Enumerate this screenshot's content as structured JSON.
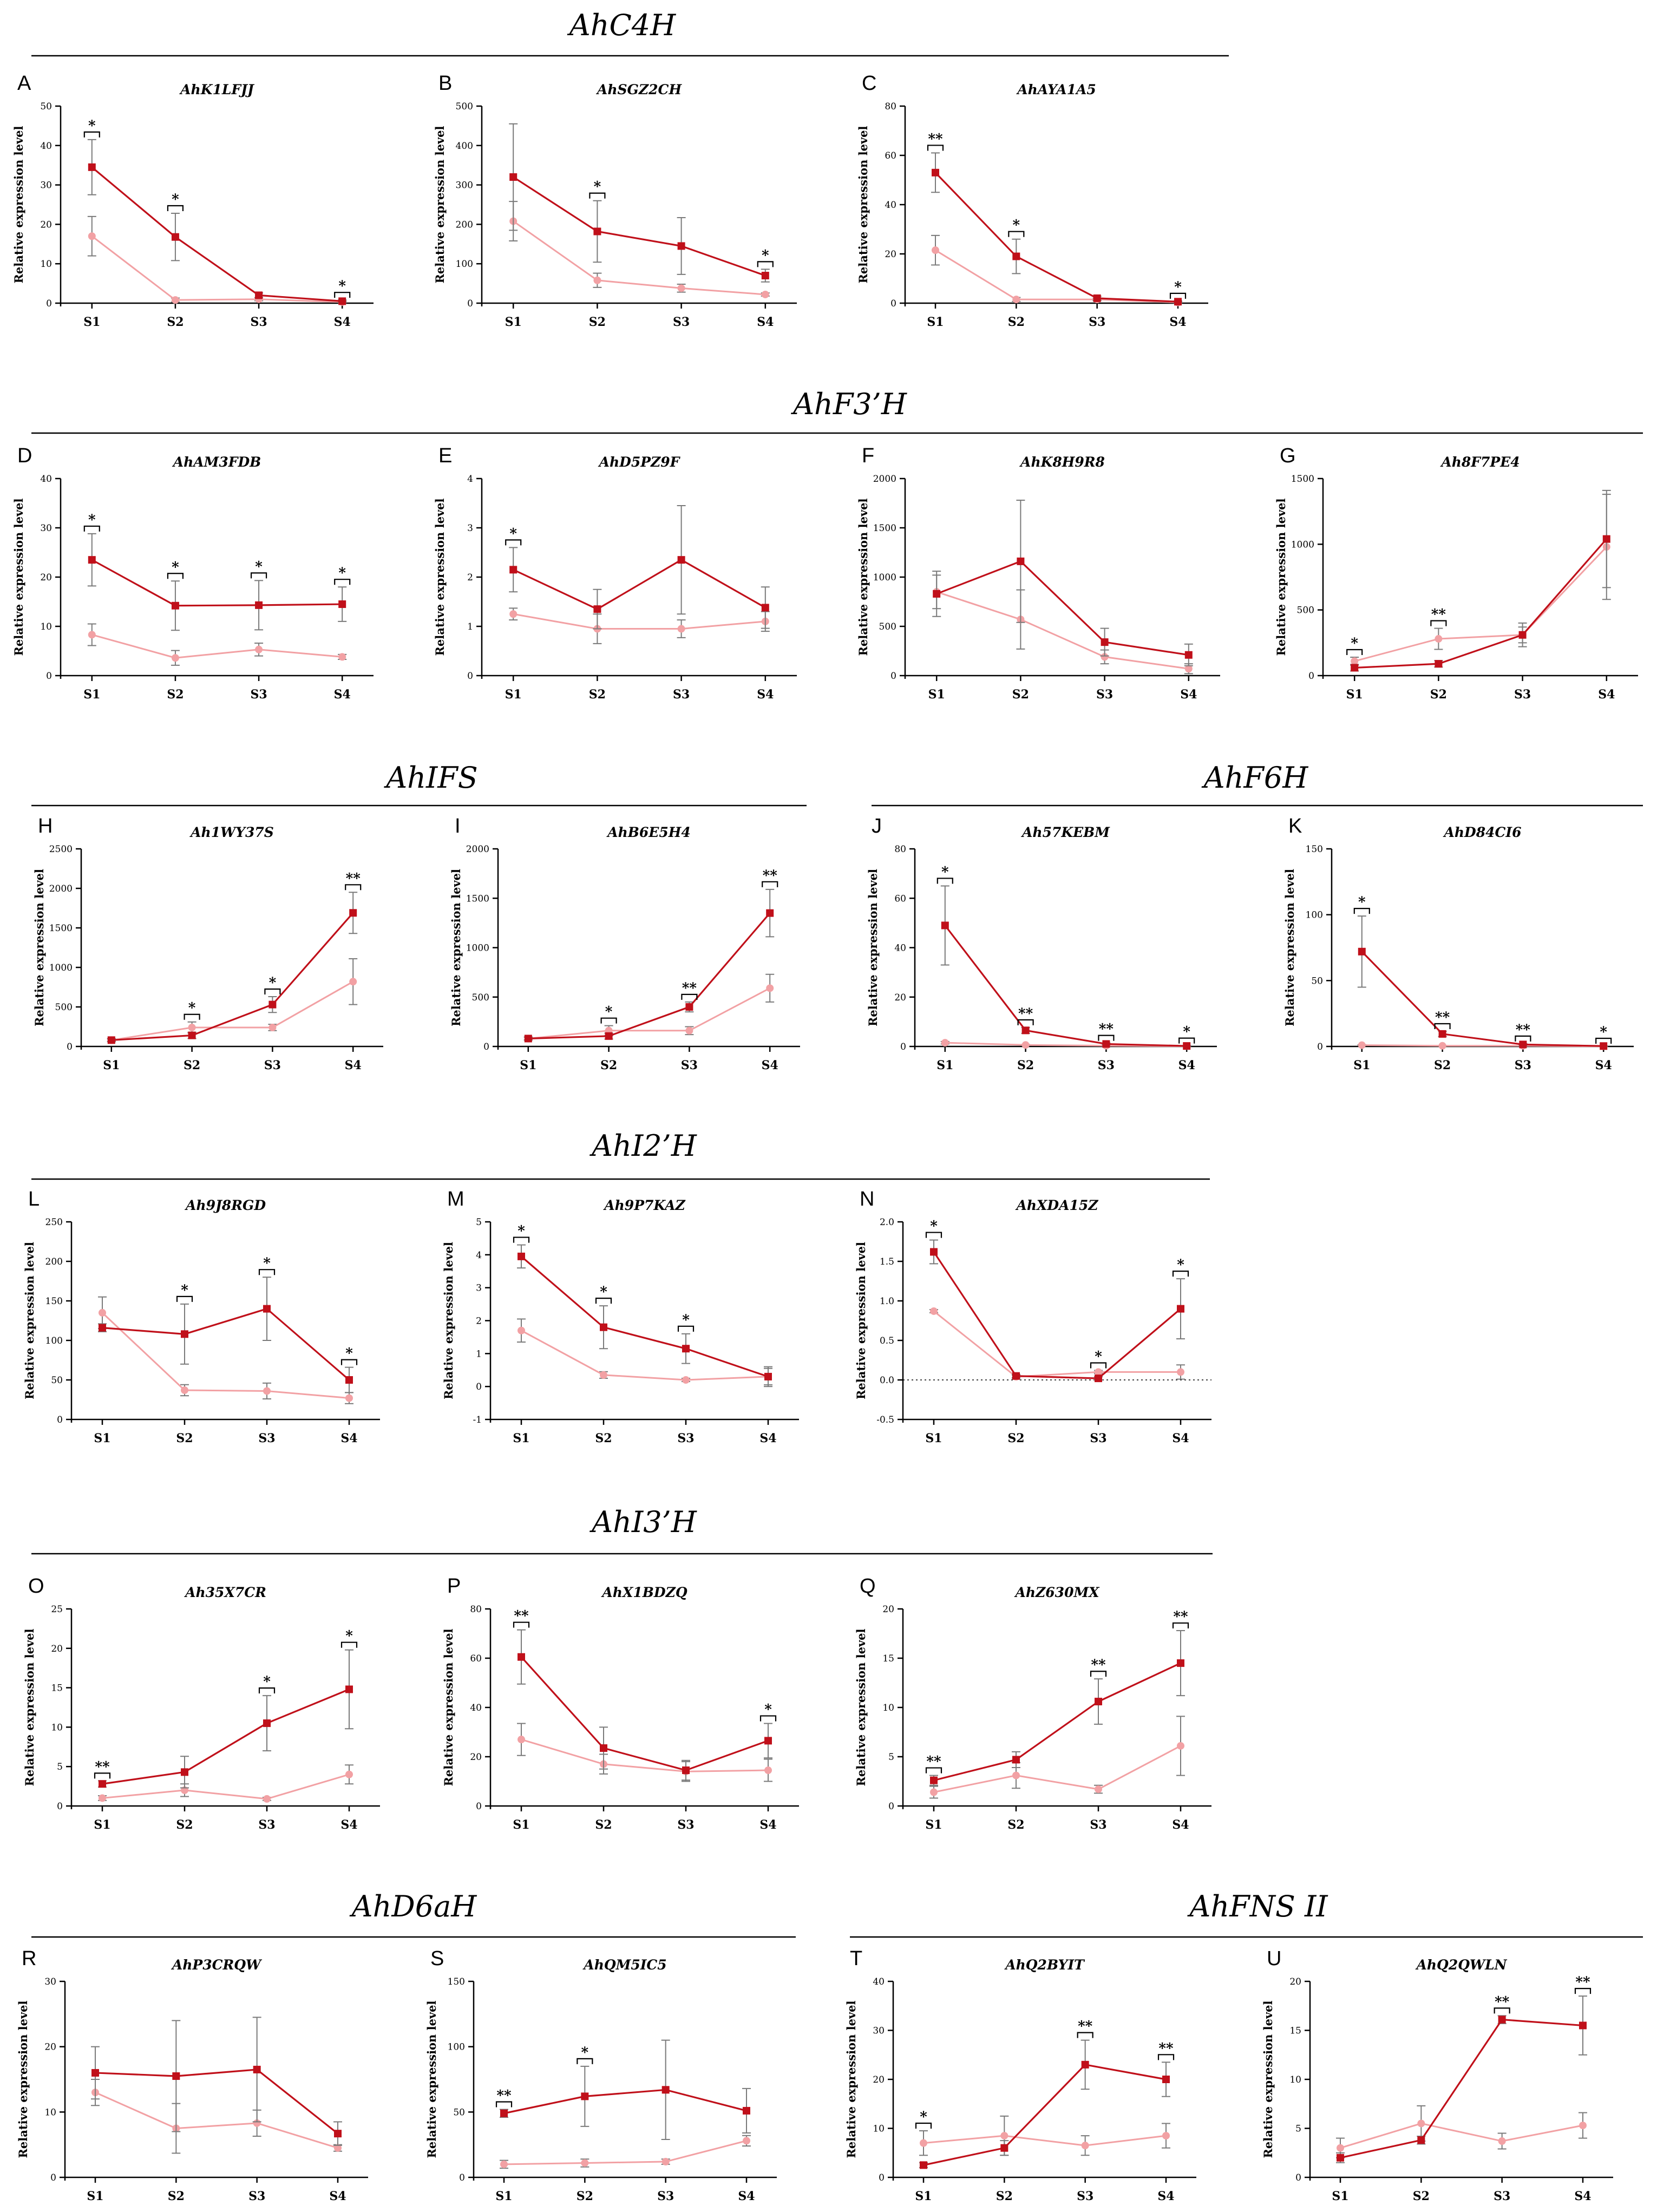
{
  "colors": {
    "treatment": "#c0101a",
    "control": "#f2a1a4"
  },
  "y_axis_label": "Relative expression level",
  "group_titles": [
    {
      "text": "AhC4H"
    },
    {
      "text": "AhF3’H"
    },
    {
      "text": "AhIFS"
    },
    {
      "text": "AhF6H"
    },
    {
      "text": "AhI2’H"
    },
    {
      "text": "AhI3’H"
    },
    {
      "text": "AhD6aH"
    },
    {
      "text": "AhFNS II"
    }
  ],
  "chart_data": [
    {
      "type": "line",
      "panel": "A",
      "title": "AhK1LFJJ",
      "categories": [
        "S1",
        "S2",
        "S3",
        "S4"
      ],
      "ylim": [
        0,
        50
      ],
      "yticks": [
        0,
        10,
        20,
        30,
        40,
        50
      ],
      "series": [
        {
          "name": "dark",
          "values": [
            34.5,
            16.8,
            2.0,
            0.5
          ],
          "errors": [
            7,
            6,
            0.6,
            0.3
          ]
        },
        {
          "name": "light",
          "values": [
            17.0,
            0.8,
            1.0,
            0.3
          ],
          "errors": [
            5,
            0.5,
            0.4,
            0.2
          ]
        }
      ],
      "significance": [
        "*",
        "*",
        "",
        "*"
      ]
    },
    {
      "type": "line",
      "panel": "B",
      "title": "AhSGZ2CH",
      "categories": [
        "S1",
        "S2",
        "S3",
        "S4"
      ],
      "ylim": [
        0,
        500
      ],
      "yticks": [
        0,
        100,
        200,
        300,
        400,
        500
      ],
      "series": [
        {
          "name": "dark",
          "values": [
            320,
            182,
            145,
            70
          ],
          "errors": [
            135,
            78,
            72,
            16
          ]
        },
        {
          "name": "light",
          "values": [
            208,
            58,
            38,
            22
          ],
          "errors": [
            50,
            18,
            10,
            4
          ]
        }
      ],
      "significance": [
        "",
        "*",
        "",
        "*"
      ]
    },
    {
      "type": "line",
      "panel": "C",
      "title": "AhAYA1A5",
      "categories": [
        "S1",
        "S2",
        "S3",
        "S4"
      ],
      "ylim": [
        0,
        80
      ],
      "yticks": [
        0,
        20,
        40,
        60,
        80
      ],
      "series": [
        {
          "name": "dark",
          "values": [
            53,
            19,
            2,
            0.6
          ],
          "errors": [
            8,
            7,
            0.8,
            0.3
          ]
        },
        {
          "name": "light",
          "values": [
            21.5,
            1.5,
            1.5,
            0.3
          ],
          "errors": [
            6,
            0.8,
            0.5,
            0.2
          ]
        }
      ],
      "significance": [
        "**",
        "*",
        "",
        "*"
      ]
    },
    {
      "type": "line",
      "panel": "D",
      "title": "AhAM3FDB",
      "categories": [
        "S1",
        "S2",
        "S3",
        "S4"
      ],
      "ylim": [
        0,
        40
      ],
      "yticks": [
        0,
        10,
        20,
        30,
        40
      ],
      "series": [
        {
          "name": "dark",
          "values": [
            23.5,
            14.2,
            14.3,
            14.5
          ],
          "errors": [
            5.3,
            5,
            5,
            3.5
          ]
        },
        {
          "name": "light",
          "values": [
            8.3,
            3.6,
            5.3,
            3.8
          ],
          "errors": [
            2.2,
            1.5,
            1.3,
            0.5
          ]
        }
      ],
      "significance": [
        "*",
        "*",
        "*",
        "*"
      ]
    },
    {
      "type": "line",
      "panel": "E",
      "title": "AhD5PZ9F",
      "categories": [
        "S1",
        "S2",
        "S3",
        "S4"
      ],
      "ylim": [
        0,
        4
      ],
      "yticks": [
        0,
        1,
        2,
        3,
        4
      ],
      "series": [
        {
          "name": "dark",
          "values": [
            2.15,
            1.35,
            2.35,
            1.38
          ],
          "errors": [
            0.45,
            0.4,
            1.1,
            0.42
          ]
        },
        {
          "name": "light",
          "values": [
            1.25,
            0.95,
            0.95,
            1.1
          ],
          "errors": [
            0.12,
            0.3,
            0.18,
            0.2
          ]
        }
      ],
      "significance": [
        "*",
        "",
        "",
        ""
      ]
    },
    {
      "type": "line",
      "panel": "F",
      "title": "AhK8H9R8",
      "categories": [
        "S1",
        "S2",
        "S3",
        "S4"
      ],
      "ylim": [
        0,
        2000
      ],
      "yticks": [
        0,
        500,
        1000,
        1500,
        2000
      ],
      "series": [
        {
          "name": "dark",
          "values": [
            830,
            1160,
            340,
            210
          ],
          "errors": [
            230,
            620,
            140,
            110
          ]
        },
        {
          "name": "light",
          "values": [
            850,
            570,
            190,
            70
          ],
          "errors": [
            170,
            300,
            70,
            50
          ]
        }
      ],
      "significance": [
        "",
        "",
        "",
        ""
      ]
    },
    {
      "type": "line",
      "panel": "G",
      "title": "Ah8F7PE4",
      "categories": [
        "S1",
        "S2",
        "S3",
        "S4"
      ],
      "ylim": [
        0,
        1500
      ],
      "yticks": [
        0,
        500,
        1000,
        1500
      ],
      "series": [
        {
          "name": "dark",
          "values": [
            60,
            90,
            310,
            1040
          ],
          "errors": [
            25,
            25,
            60,
            370
          ]
        },
        {
          "name": "light",
          "values": [
            110,
            280,
            310,
            980
          ],
          "errors": [
            30,
            80,
            90,
            400
          ]
        }
      ],
      "significance": [
        "*",
        "**",
        "",
        ""
      ]
    },
    {
      "type": "line",
      "panel": "H",
      "title": "Ah1WY37S",
      "categories": [
        "S1",
        "S2",
        "S3",
        "S4"
      ],
      "ylim": [
        0,
        2500
      ],
      "yticks": [
        0,
        500,
        1000,
        1500,
        2000,
        2500
      ],
      "series": [
        {
          "name": "dark",
          "values": [
            80,
            140,
            530,
            1690
          ],
          "errors": [
            20,
            40,
            100,
            260
          ]
        },
        {
          "name": "light",
          "values": [
            80,
            240,
            240,
            820
          ],
          "errors": [
            15,
            70,
            40,
            290
          ]
        }
      ],
      "significance": [
        "",
        "*",
        "*",
        "**"
      ]
    },
    {
      "type": "line",
      "panel": "I",
      "title": "AhB6E5H4",
      "categories": [
        "S1",
        "S2",
        "S3",
        "S4"
      ],
      "ylim": [
        0,
        2000
      ],
      "yticks": [
        0,
        500,
        1000,
        1500,
        2000
      ],
      "series": [
        {
          "name": "dark",
          "values": [
            80,
            105,
            400,
            1350
          ],
          "errors": [
            15,
            30,
            50,
            240
          ]
        },
        {
          "name": "light",
          "values": [
            80,
            160,
            160,
            590
          ],
          "errors": [
            15,
            50,
            40,
            140
          ]
        }
      ],
      "significance": [
        "",
        "*",
        "**",
        "**"
      ]
    },
    {
      "type": "line",
      "panel": "J",
      "title": "Ah57KEBM",
      "categories": [
        "S1",
        "S2",
        "S3",
        "S4"
      ],
      "ylim": [
        0,
        80
      ],
      "yticks": [
        0,
        20,
        40,
        60,
        80
      ],
      "series": [
        {
          "name": "dark",
          "values": [
            49,
            6.5,
            1.0,
            0.2
          ],
          "errors": [
            16,
            1.2,
            0.4,
            0.1
          ]
        },
        {
          "name": "light",
          "values": [
            1.5,
            0.6,
            0.3,
            0.1
          ],
          "errors": [
            0.5,
            0.2,
            0.1,
            0.05
          ]
        }
      ],
      "significance": [
        "*",
        "**",
        "**",
        "*"
      ]
    },
    {
      "type": "line",
      "panel": "K",
      "title": "AhD84CI6",
      "categories": [
        "S1",
        "S2",
        "S3",
        "S4"
      ],
      "ylim": [
        0,
        150
      ],
      "yticks": [
        0,
        50,
        100,
        150
      ],
      "series": [
        {
          "name": "dark",
          "values": [
            72,
            9.5,
            1.5,
            0.3
          ],
          "errors": [
            27,
            2,
            0.6,
            0.1
          ]
        },
        {
          "name": "light",
          "values": [
            1.0,
            0.5,
            0.5,
            0.1
          ],
          "errors": [
            0.3,
            0.2,
            0.1,
            0.05
          ]
        }
      ],
      "significance": [
        "*",
        "**",
        "**",
        "*"
      ]
    },
    {
      "type": "line",
      "panel": "L",
      "title": "Ah9J8RGD",
      "categories": [
        "S1",
        "S2",
        "S3",
        "S4"
      ],
      "ylim": [
        0,
        250
      ],
      "yticks": [
        0,
        50,
        100,
        150,
        200,
        250
      ],
      "series": [
        {
          "name": "dark",
          "values": [
            116,
            108,
            140,
            50
          ],
          "errors": [
            5,
            38,
            40,
            16
          ]
        },
        {
          "name": "light",
          "values": [
            135,
            37,
            36,
            27
          ],
          "errors": [
            20,
            7,
            10,
            7
          ]
        }
      ],
      "significance": [
        "",
        "*",
        "*",
        "*"
      ]
    },
    {
      "type": "line",
      "panel": "M",
      "title": "Ah9P7KAZ",
      "categories": [
        "S1",
        "S2",
        "S3",
        "S4"
      ],
      "ylim": [
        -1,
        5
      ],
      "yticks": [
        -1,
        0,
        1,
        2,
        3,
        4,
        5
      ],
      "series": [
        {
          "name": "dark",
          "values": [
            3.95,
            1.8,
            1.15,
            0.3
          ],
          "errors": [
            0.35,
            0.65,
            0.45,
            0.25
          ]
        },
        {
          "name": "light",
          "values": [
            1.7,
            0.35,
            0.2,
            0.3
          ],
          "errors": [
            0.35,
            0.1,
            0.05,
            0.3
          ]
        }
      ],
      "significance": [
        "*",
        "*",
        "*",
        ""
      ]
    },
    {
      "type": "line",
      "panel": "N",
      "title": "AhXDA15Z",
      "categories": [
        "S1",
        "S2",
        "S3",
        "S4"
      ],
      "ylim": [
        -0.5,
        2.0
      ],
      "yticks": [
        -0.5,
        0.0,
        0.5,
        1.0,
        1.5,
        2.0
      ],
      "yticklabels": [
        "-0.5",
        "0.0",
        "0.5",
        "1.0",
        "1.5",
        "2.0"
      ],
      "zero_line": true,
      "series": [
        {
          "name": "dark",
          "values": [
            1.62,
            0.05,
            0.02,
            0.9
          ],
          "errors": [
            0.15,
            0.02,
            0.02,
            0.38
          ]
        },
        {
          "name": "light",
          "values": [
            0.87,
            0.04,
            0.1,
            0.1
          ],
          "errors": [
            0.02,
            0.02,
            0.02,
            0.09
          ]
        }
      ],
      "significance": [
        "*",
        "",
        "*",
        "*"
      ]
    },
    {
      "type": "line",
      "panel": "O",
      "title": "Ah35X7CR",
      "categories": [
        "S1",
        "S2",
        "S3",
        "S4"
      ],
      "ylim": [
        0,
        25
      ],
      "yticks": [
        0,
        5,
        10,
        15,
        20,
        25
      ],
      "series": [
        {
          "name": "dark",
          "values": [
            2.8,
            4.3,
            10.5,
            14.8
          ],
          "errors": [
            0.4,
            2,
            3.5,
            5
          ]
        },
        {
          "name": "light",
          "values": [
            1.0,
            2.0,
            0.9,
            4.0
          ],
          "errors": [
            0.3,
            0.8,
            0.2,
            1.2
          ]
        }
      ],
      "significance": [
        "**",
        "",
        "*",
        "*"
      ]
    },
    {
      "type": "line",
      "panel": "P",
      "title": "AhX1BDZQ",
      "categories": [
        "S1",
        "S2",
        "S3",
        "S4"
      ],
      "ylim": [
        0,
        80
      ],
      "yticks": [
        0,
        20,
        40,
        60,
        80
      ],
      "series": [
        {
          "name": "dark",
          "values": [
            60.5,
            23.5,
            14.5,
            26.5
          ],
          "errors": [
            11,
            8.5,
            4,
            7
          ]
        },
        {
          "name": "light",
          "values": [
            27,
            17,
            14,
            14.5
          ],
          "errors": [
            6.5,
            4,
            4,
            4.5
          ]
        }
      ],
      "significance": [
        "**",
        "",
        "",
        "*"
      ]
    },
    {
      "type": "line",
      "panel": "Q",
      "title": "AhZ630MX",
      "categories": [
        "S1",
        "S2",
        "S3",
        "S4"
      ],
      "ylim": [
        0,
        20
      ],
      "yticks": [
        0,
        5,
        10,
        15,
        20
      ],
      "series": [
        {
          "name": "dark",
          "values": [
            2.6,
            4.7,
            10.6,
            14.5
          ],
          "errors": [
            0.5,
            0.8,
            2.3,
            3.3
          ]
        },
        {
          "name": "light",
          "values": [
            1.4,
            3.1,
            1.7,
            6.1
          ],
          "errors": [
            0.6,
            1.3,
            0.4,
            3
          ]
        }
      ],
      "significance": [
        "**",
        "",
        "**",
        "**"
      ]
    },
    {
      "type": "line",
      "panel": "R",
      "title": "AhP3CRQW",
      "categories": [
        "S1",
        "S2",
        "S3",
        "S4"
      ],
      "ylim": [
        0,
        30
      ],
      "yticks": [
        0,
        10,
        20,
        30
      ],
      "series": [
        {
          "name": "dark",
          "values": [
            16,
            15.5,
            16.5,
            6.7
          ],
          "errors": [
            4,
            8.5,
            8,
            1.8
          ]
        },
        {
          "name": "light",
          "values": [
            13,
            7.5,
            8.3,
            4.5
          ],
          "errors": [
            2,
            3.8,
            2,
            0.5
          ]
        }
      ],
      "significance": [
        "",
        "",
        "",
        ""
      ]
    },
    {
      "type": "line",
      "panel": "S",
      "title": "AhQM5IC5",
      "categories": [
        "S1",
        "S2",
        "S3",
        "S4"
      ],
      "ylim": [
        0,
        150
      ],
      "yticks": [
        0,
        50,
        100,
        150
      ],
      "series": [
        {
          "name": "dark",
          "values": [
            49,
            62,
            67,
            51
          ],
          "errors": [
            3,
            23,
            38,
            17
          ]
        },
        {
          "name": "light",
          "values": [
            10,
            11,
            12,
            28
          ],
          "errors": [
            3,
            3,
            2,
            4
          ]
        }
      ],
      "significance": [
        "**",
        "*",
        "",
        ""
      ]
    },
    {
      "type": "line",
      "panel": "T",
      "title": "AhQ2BYIT",
      "categories": [
        "S1",
        "S2",
        "S3",
        "S4"
      ],
      "ylim": [
        0,
        40
      ],
      "yticks": [
        0,
        10,
        20,
        30,
        40
      ],
      "series": [
        {
          "name": "dark",
          "values": [
            2.5,
            6.0,
            23,
            20
          ],
          "errors": [
            0.5,
            1.5,
            5,
            3.5
          ]
        },
        {
          "name": "light",
          "values": [
            7,
            8.5,
            6.5,
            8.5
          ],
          "errors": [
            2.5,
            4,
            2,
            2.5
          ]
        }
      ],
      "significance": [
        "*",
        "",
        "**",
        "**"
      ]
    },
    {
      "type": "line",
      "panel": "U",
      "title": "AhQ2QWLN",
      "categories": [
        "S1",
        "S2",
        "S3",
        "S4"
      ],
      "ylim": [
        0,
        20
      ],
      "yticks": [
        0,
        5,
        10,
        15,
        20
      ],
      "series": [
        {
          "name": "dark",
          "values": [
            2.0,
            3.8,
            16.1,
            15.5
          ],
          "errors": [
            0.5,
            0.4,
            0.4,
            3
          ]
        },
        {
          "name": "light",
          "values": [
            3.0,
            5.5,
            3.7,
            5.3
          ],
          "errors": [
            1,
            1.8,
            0.8,
            1.3
          ]
        }
      ],
      "significance": [
        "",
        "",
        "**",
        "**"
      ]
    }
  ]
}
